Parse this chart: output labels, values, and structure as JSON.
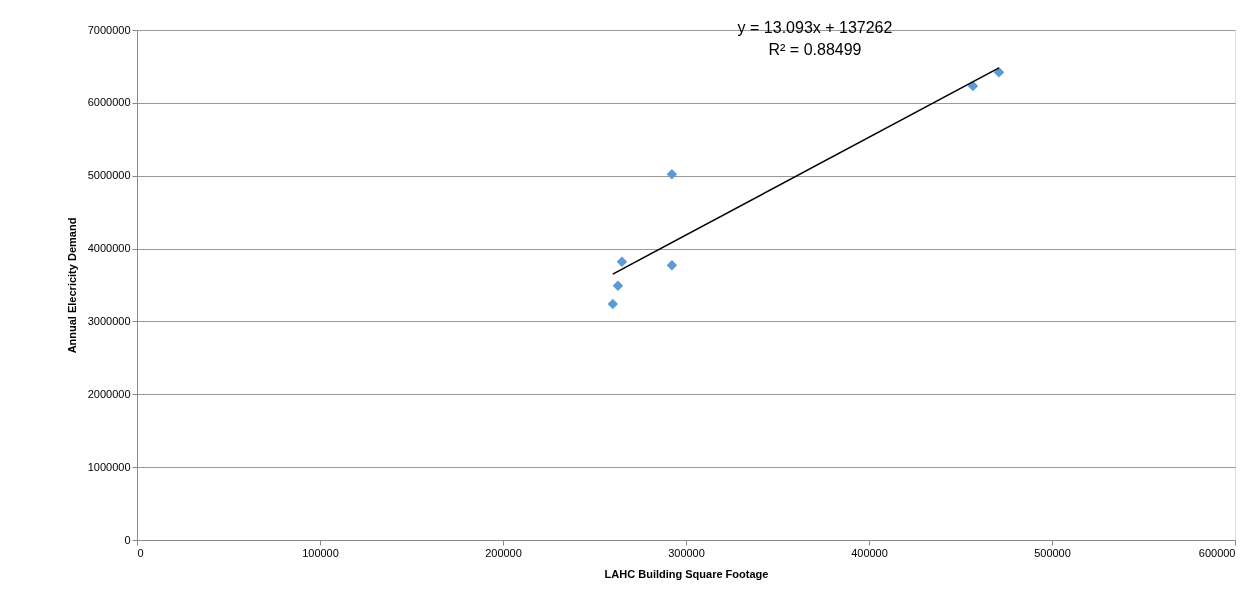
{
  "chart_data": {
    "type": "scatter",
    "xlabel": "LAHC Building Square Footage",
    "ylabel": "Annual Elecricity Demand",
    "x": [
      260000,
      262800,
      265000,
      292300,
      292300,
      456800,
      471000
    ],
    "series": [
      {
        "color": "#5b9bd5",
        "marker": "diamond",
        "values": [
          3240000,
          3490000,
          3820000,
          3770000,
          5020000,
          6230000,
          6420000
        ]
      },
      {
        "type": "line",
        "color": "#000000",
        "line_style": "solid",
        "x": [
          260000,
          471000
        ],
        "values": [
          3650000,
          6480000
        ]
      }
    ],
    "annotations": [
      "y = 13.093x + 137262",
      "R² = 0.88499"
    ],
    "xlim": [
      0,
      600000
    ],
    "xticks": [
      0,
      100000,
      200000,
      300000,
      400000,
      500000,
      600000
    ],
    "ylim": [
      0,
      7000000
    ],
    "yticks": [
      0,
      1000000,
      2000000,
      3000000,
      4000000,
      5000000,
      6000000,
      7000000
    ],
    "grid": "y"
  }
}
